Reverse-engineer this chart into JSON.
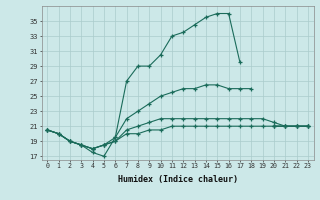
{
  "xlabel": "Humidex (Indice chaleur)",
  "background_color": "#cce8e8",
  "grid_color": "#aacccc",
  "line_color": "#1a6b5a",
  "x_values": [
    0,
    1,
    2,
    3,
    4,
    5,
    6,
    7,
    8,
    9,
    10,
    11,
    12,
    13,
    14,
    15,
    16,
    17,
    18,
    19,
    20,
    21,
    22,
    23
  ],
  "series": [
    [
      20.5,
      20.0,
      19.0,
      18.5,
      17.5,
      17.0,
      19.5,
      27.0,
      29.0,
      29.0,
      30.5,
      33.0,
      33.5,
      34.5,
      35.5,
      36.0,
      36.0,
      29.5,
      null,
      null,
      21.0,
      21.0,
      21.0,
      21.0
    ],
    [
      20.5,
      20.0,
      19.0,
      18.5,
      18.0,
      18.5,
      19.5,
      22.0,
      23.0,
      24.0,
      25.0,
      25.5,
      26.0,
      26.0,
      26.5,
      26.5,
      26.0,
      26.0,
      26.0,
      null,
      21.0,
      21.0,
      21.0,
      21.0
    ],
    [
      20.5,
      20.0,
      19.0,
      18.5,
      18.0,
      18.5,
      19.0,
      20.5,
      21.0,
      21.5,
      22.0,
      22.0,
      22.0,
      22.0,
      22.0,
      22.0,
      22.0,
      22.0,
      22.0,
      22.0,
      21.5,
      21.0,
      21.0,
      21.0
    ],
    [
      20.5,
      20.0,
      19.0,
      18.5,
      18.0,
      18.5,
      19.0,
      20.0,
      20.0,
      20.5,
      20.5,
      21.0,
      21.0,
      21.0,
      21.0,
      21.0,
      21.0,
      21.0,
      21.0,
      21.0,
      21.0,
      21.0,
      21.0,
      21.0
    ]
  ],
  "yticks": [
    17,
    19,
    21,
    23,
    25,
    27,
    29,
    31,
    33,
    35
  ],
  "ylim": [
    16.5,
    37.0
  ],
  "xlim": [
    -0.5,
    23.5
  ]
}
